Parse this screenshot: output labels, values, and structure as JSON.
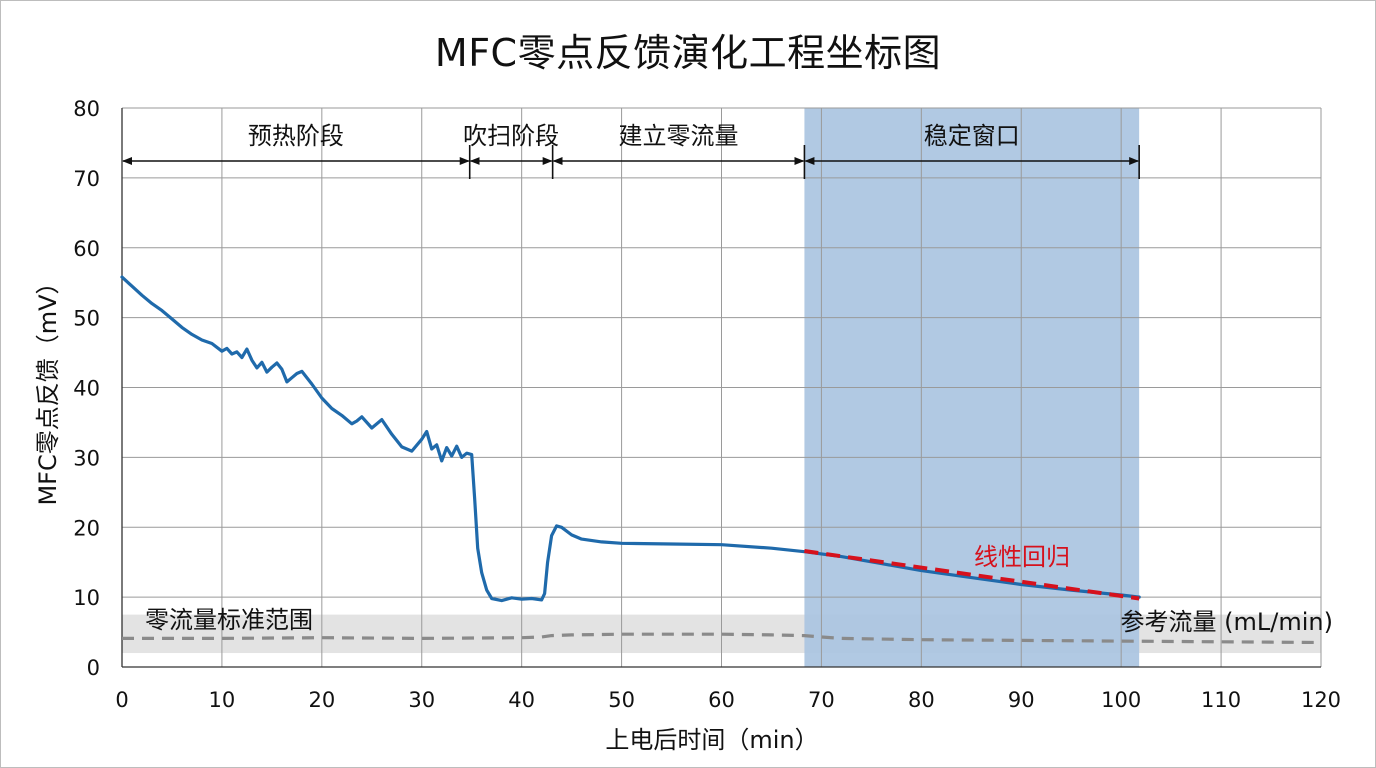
{
  "chart_data": {
    "type": "line",
    "title": "MFC零点反馈演化工程坐标图",
    "xlabel": "上电后时间（min）",
    "ylabel": "MFC零点反馈（mV）",
    "xlim": [
      0,
      120
    ],
    "ylim": [
      0,
      80
    ],
    "xticks": [
      0,
      10,
      20,
      30,
      40,
      50,
      60,
      70,
      80,
      90,
      100,
      110,
      120
    ],
    "yticks": [
      0,
      10,
      20,
      30,
      40,
      50,
      60,
      70,
      80
    ],
    "grid": true,
    "phases": [
      {
        "label": "预热阶段",
        "start": 0,
        "end": 34.8
      },
      {
        "label": "吹扫阶段",
        "start": 34.8,
        "end": 43.1
      },
      {
        "label": "建立零流量",
        "start": 43.1,
        "end": 68.3
      },
      {
        "label": "稳定窗口",
        "start": 68.3,
        "end": 101.8
      }
    ],
    "stable_window": {
      "label": "稳定窗口",
      "x": [
        68.3,
        101.8
      ],
      "color": "#a9c3e0"
    },
    "zero_flow_band": {
      "label": "零流量标准范围",
      "y": [
        2,
        7.5
      ],
      "color": "#e3e3e3"
    },
    "series": [
      {
        "name": "MFC零点反馈",
        "color": "#1f6aab",
        "style": "solid",
        "x": [
          0,
          1,
          2,
          3,
          4,
          5,
          6,
          7,
          8,
          9,
          10,
          10.5,
          11,
          11.5,
          12,
          12.5,
          13,
          13.5,
          14,
          14.5,
          15,
          15.5,
          16,
          16.5,
          17,
          17.5,
          18,
          19,
          20,
          21,
          22,
          23,
          23.5,
          24,
          25,
          26,
          27,
          28,
          29,
          30,
          30.5,
          31,
          31.5,
          32,
          32.5,
          33,
          33.5,
          34,
          34.5,
          35,
          35.3,
          35.6,
          36,
          36.5,
          37,
          38,
          39,
          40,
          41,
          42,
          42.3,
          42.6,
          43,
          43.5,
          44,
          45,
          46,
          48,
          50,
          55,
          60,
          65,
          68.3,
          72,
          76,
          80,
          85,
          90,
          95,
          100,
          101.8
        ],
        "y": [
          55.8,
          54.5,
          53.2,
          52,
          51,
          49.8,
          48.6,
          47.6,
          46.8,
          46.3,
          45.2,
          45.6,
          44.8,
          45.1,
          44.3,
          45.5,
          43.9,
          42.8,
          43.6,
          42.2,
          42.9,
          43.5,
          42.6,
          40.8,
          41.4,
          42,
          42.3,
          40.5,
          38.5,
          37,
          36,
          34.8,
          35.2,
          35.8,
          34.2,
          35.4,
          33.3,
          31.5,
          30.9,
          32.6,
          33.7,
          31.2,
          31.8,
          29.5,
          31.4,
          30.2,
          31.6,
          30,
          30.6,
          30.4,
          24,
          17,
          13.5,
          11,
          9.8,
          9.5,
          9.9,
          9.7,
          9.8,
          9.6,
          10.5,
          15,
          18.8,
          20.2,
          20,
          18.9,
          18.3,
          17.9,
          17.7,
          17.6,
          17.5,
          17,
          16.5,
          15.8,
          14.8,
          13.8,
          12.8,
          11.8,
          11,
          10.3,
          10
        ]
      },
      {
        "name": "线性回归",
        "color": "#d6111c",
        "style": "dashed",
        "x": [
          68.3,
          101.8
        ],
        "y": [
          16.6,
          9.8
        ]
      },
      {
        "name": "参考流量 (mL/min)",
        "color": "#8a8a8a",
        "style": "dashed",
        "x": [
          0,
          10,
          20,
          30,
          40,
          42,
          43,
          45,
          50,
          55,
          60,
          65,
          68.3,
          70,
          72,
          80,
          90,
          100,
          110,
          120
        ],
        "y": [
          4.1,
          4.1,
          4.2,
          4.1,
          4.2,
          4.3,
          4.5,
          4.6,
          4.7,
          4.7,
          4.7,
          4.6,
          4.5,
          4.3,
          4.1,
          3.9,
          3.8,
          3.7,
          3.6,
          3.5
        ]
      }
    ],
    "annotations": {
      "band_label": "零流量标准范围",
      "regression_label": "线性回归",
      "reference_label": "参考流量 (mL/min)"
    }
  }
}
